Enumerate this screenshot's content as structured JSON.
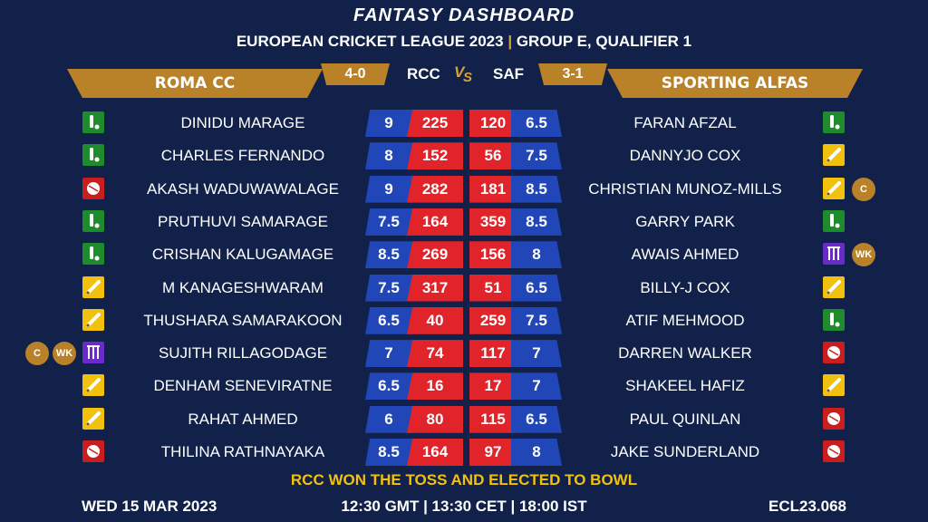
{
  "header": {
    "title": "FANTASY DASHBOARD",
    "league": "EUROPEAN CRICKET LEAGUE 2023",
    "separator": "|",
    "match": "GROUP E, QUALIFIER 1"
  },
  "teams": {
    "left": {
      "name": "ROMA CC",
      "abbr": "RCC",
      "score": "4-0"
    },
    "right": {
      "name": "SPORTING ALFAS",
      "abbr": "SAF",
      "score": "3-1"
    },
    "vs": "VS"
  },
  "colors": {
    "background": "#12214a",
    "gold": "#b98128",
    "credit_blue": "#2146b8",
    "points_red": "#e0242a",
    "toss_yellow": "#f2c10e"
  },
  "players_left": [
    {
      "name": "DINIDU MARAGE",
      "credits": "9",
      "points": "225",
      "role": "allrounder",
      "badges": []
    },
    {
      "name": "CHARLES FERNANDO",
      "credits": "8",
      "points": "152",
      "role": "allrounder",
      "badges": []
    },
    {
      "name": "AKASH WADUWAWALAGE",
      "credits": "9",
      "points": "282",
      "role": "bowler",
      "badges": []
    },
    {
      "name": "PRUTHUVI SAMARAGE",
      "credits": "7.5",
      "points": "164",
      "role": "allrounder",
      "badges": []
    },
    {
      "name": "CRISHAN KALUGAMAGE",
      "credits": "8.5",
      "points": "269",
      "role": "allrounder",
      "badges": []
    },
    {
      "name": "M KANAGESHWARAM",
      "credits": "7.5",
      "points": "317",
      "role": "batter",
      "badges": []
    },
    {
      "name": "THUSHARA SAMARAKOON",
      "credits": "6.5",
      "points": "40",
      "role": "batter",
      "badges": []
    },
    {
      "name": "SUJITH RILLAGODAGE",
      "credits": "7",
      "points": "74",
      "role": "keeper",
      "badges": [
        "C",
        "WK"
      ]
    },
    {
      "name": "DENHAM SENEVIRATNE",
      "credits": "6.5",
      "points": "16",
      "role": "batter",
      "badges": []
    },
    {
      "name": "RAHAT AHMED",
      "credits": "6",
      "points": "80",
      "role": "batter",
      "badges": []
    },
    {
      "name": "THILINA RATHNAYAKA",
      "credits": "8.5",
      "points": "164",
      "role": "bowler",
      "badges": []
    }
  ],
  "players_right": [
    {
      "name": "FARAN AFZAL",
      "points": "120",
      "credits": "6.5",
      "role": "allrounder",
      "badges": []
    },
    {
      "name": "DANNYJO COX",
      "points": "56",
      "credits": "7.5",
      "role": "batter",
      "badges": []
    },
    {
      "name": "CHRISTIAN MUNOZ-MILLS",
      "points": "181",
      "credits": "8.5",
      "role": "batter",
      "badges": [
        "C"
      ]
    },
    {
      "name": "GARRY PARK",
      "points": "359",
      "credits": "8.5",
      "role": "allrounder",
      "badges": []
    },
    {
      "name": "AWAIS AHMED",
      "points": "156",
      "credits": "8",
      "role": "keeper",
      "badges": [
        "WK"
      ]
    },
    {
      "name": "BILLY-J COX",
      "points": "51",
      "credits": "6.5",
      "role": "batter",
      "badges": []
    },
    {
      "name": "ATIF MEHMOOD",
      "points": "259",
      "credits": "7.5",
      "role": "allrounder",
      "badges": []
    },
    {
      "name": "DARREN WALKER",
      "points": "117",
      "credits": "7",
      "role": "bowler",
      "badges": []
    },
    {
      "name": "SHAKEEL HAFIZ",
      "points": "17",
      "credits": "7",
      "role": "batter",
      "badges": []
    },
    {
      "name": "PAUL QUINLAN",
      "points": "115",
      "credits": "6.5",
      "role": "bowler",
      "badges": []
    },
    {
      "name": "JAKE SUNDERLAND",
      "points": "97",
      "credits": "8",
      "role": "bowler",
      "badges": []
    }
  ],
  "toss": "RCC WON THE TOSS AND ELECTED TO BOWL",
  "footer": {
    "date": "WED 15 MAR 2023",
    "time": "12:30 GMT | 13:30 CET | 18:00 IST",
    "code": "ECL23.068"
  }
}
